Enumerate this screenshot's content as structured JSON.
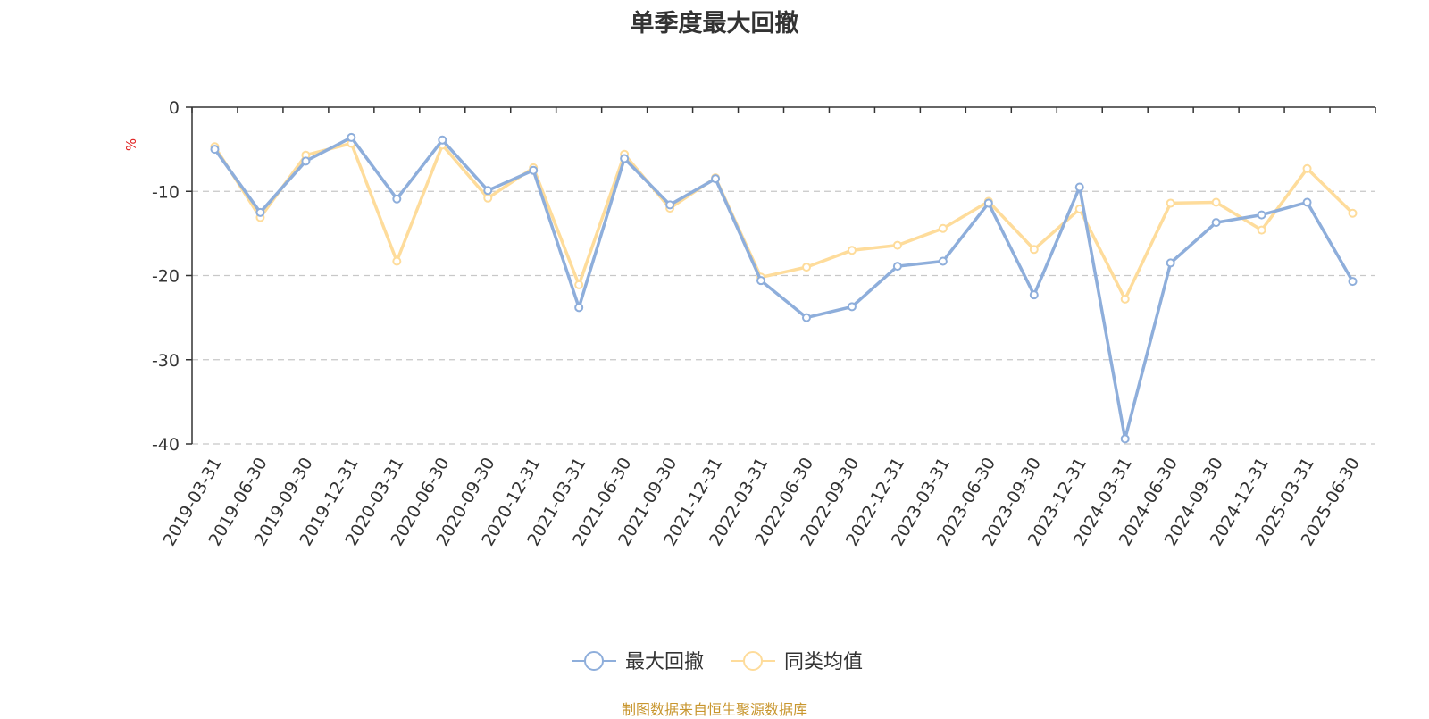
{
  "source_note": "制图数据来自恒生聚源数据库",
  "chart_data": {
    "type": "line",
    "title": "单季度最大回撤",
    "xlabel": "",
    "ylabel": "%",
    "ylim": [
      -40,
      0
    ],
    "yticks": [
      0,
      -10,
      -20,
      -30,
      -40
    ],
    "grid": true,
    "legend_position": "bottom-center",
    "categories": [
      "2019-03-31",
      "2019-06-30",
      "2019-09-30",
      "2019-12-31",
      "2020-03-31",
      "2020-06-30",
      "2020-09-30",
      "2020-12-31",
      "2021-03-31",
      "2021-06-30",
      "2021-09-30",
      "2021-12-31",
      "2022-03-31",
      "2022-06-30",
      "2022-09-30",
      "2022-12-31",
      "2023-03-31",
      "2023-06-30",
      "2023-09-30",
      "2023-12-31",
      "2024-03-31",
      "2024-06-30",
      "2024-09-30",
      "2024-12-31",
      "2025-03-31",
      "2025-06-30"
    ],
    "series": [
      {
        "name": "最大回撤",
        "color": "#8eaedb",
        "values": [
          -5.0,
          -12.5,
          -6.4,
          -3.6,
          -10.9,
          -3.9,
          -9.9,
          -7.5,
          -23.8,
          -6.1,
          -11.6,
          -8.5,
          -20.6,
          -25.0,
          -23.7,
          -18.9,
          -18.3,
          -11.4,
          -22.3,
          -9.5,
          -39.4,
          -18.5,
          -13.7,
          -12.8,
          -11.3,
          -20.7
        ]
      },
      {
        "name": "同类均值",
        "color": "#fedc9b",
        "values": [
          -4.7,
          -13.1,
          -5.7,
          -4.3,
          -18.3,
          -4.5,
          -10.8,
          -7.2,
          -21.1,
          -5.6,
          -12.0,
          -8.4,
          -20.2,
          -19.0,
          -17.0,
          -16.4,
          -14.4,
          -11.2,
          -16.9,
          -12.1,
          -22.8,
          -11.4,
          -11.3,
          -14.6,
          -7.3,
          -12.6
        ]
      }
    ]
  }
}
